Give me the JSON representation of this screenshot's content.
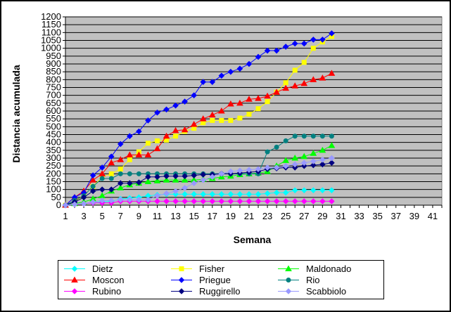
{
  "chart_data": {
    "type": "line",
    "title": "",
    "xlabel": "Semana",
    "ylabel": "Distancia acumulada",
    "xlim": [
      1,
      42
    ],
    "ylim": [
      0,
      1200
    ],
    "ytick_step": 50,
    "xticks": [
      "1",
      "3",
      "5",
      "7",
      "9",
      "11",
      "13",
      "15",
      "17",
      "19",
      "21",
      "23",
      "25",
      "27",
      "29",
      "31",
      "33",
      "35",
      "37",
      "39",
      "41"
    ],
    "plot_background": "#c0c0c0",
    "grid": true,
    "legend_position": "bottom",
    "series": [
      {
        "name": "Dietz",
        "color": "#00ffff",
        "marker": "diamond",
        "x": [
          1,
          2,
          3,
          4,
          5,
          6,
          7,
          8,
          9,
          10,
          11,
          12,
          13,
          14,
          15,
          16,
          17,
          18,
          19,
          20,
          21,
          22,
          23,
          24,
          25,
          26,
          27,
          28,
          29,
          30
        ],
        "values": [
          0,
          5,
          10,
          15,
          20,
          25,
          40,
          45,
          50,
          60,
          65,
          70,
          70,
          70,
          70,
          70,
          70,
          70,
          70,
          70,
          70,
          70,
          75,
          80,
          80,
          95,
          95,
          95,
          95,
          95
        ]
      },
      {
        "name": "Fisher",
        "color": "#ffff00",
        "marker": "square",
        "x": [
          1,
          2,
          3,
          4,
          5,
          6,
          7,
          8,
          9,
          10,
          11,
          12,
          13,
          14,
          15,
          16,
          17,
          18,
          19,
          20,
          21,
          22,
          23,
          24,
          25,
          26,
          27,
          28,
          29,
          30
        ],
        "values": [
          0,
          20,
          60,
          120,
          180,
          200,
          230,
          290,
          340,
          395,
          410,
          415,
          440,
          470,
          490,
          525,
          540,
          540,
          540,
          555,
          580,
          615,
          660,
          720,
          780,
          860,
          910,
          1000,
          1040,
          1075
        ]
      },
      {
        "name": "Maldonado",
        "color": "#00ff00",
        "marker": "triangle",
        "x": [
          1,
          2,
          3,
          4,
          5,
          6,
          7,
          8,
          9,
          10,
          11,
          12,
          13,
          14,
          15,
          16,
          17,
          18,
          19,
          20,
          21,
          22,
          23,
          24,
          25,
          26,
          27,
          28,
          29,
          30
        ],
        "values": [
          0,
          10,
          20,
          40,
          60,
          90,
          110,
          130,
          140,
          150,
          155,
          160,
          160,
          160,
          160,
          165,
          170,
          180,
          185,
          195,
          200,
          205,
          215,
          250,
          285,
          300,
          310,
          330,
          350,
          380
        ]
      },
      {
        "name": "Moscon",
        "color": "#ff0000",
        "marker": "triangle",
        "x": [
          1,
          2,
          3,
          4,
          5,
          6,
          7,
          8,
          9,
          10,
          11,
          12,
          13,
          14,
          15,
          16,
          17,
          18,
          19,
          20,
          21,
          22,
          23,
          24,
          25,
          26,
          27,
          28,
          29,
          30
        ],
        "values": [
          0,
          50,
          90,
          160,
          200,
          270,
          290,
          320,
          320,
          320,
          360,
          440,
          475,
          480,
          515,
          550,
          575,
          600,
          645,
          650,
          675,
          680,
          695,
          720,
          745,
          760,
          775,
          800,
          810,
          840
        ]
      },
      {
        "name": "Priegue",
        "color": "#0000ff",
        "marker": "diamond",
        "x": [
          1,
          2,
          3,
          4,
          5,
          6,
          7,
          8,
          9,
          10,
          11,
          12,
          13,
          14,
          15,
          16,
          17,
          18,
          19,
          20,
          21,
          22,
          23,
          24,
          25,
          26,
          27,
          28,
          29,
          30
        ],
        "values": [
          0,
          50,
          80,
          190,
          240,
          310,
          390,
          440,
          470,
          540,
          590,
          610,
          635,
          660,
          700,
          785,
          785,
          825,
          850,
          870,
          900,
          945,
          985,
          985,
          1010,
          1030,
          1030,
          1055,
          1055,
          1095
        ]
      },
      {
        "name": "Rio",
        "color": "#008080",
        "marker": "circle",
        "x": [
          1,
          2,
          3,
          4,
          5,
          6,
          7,
          8,
          9,
          10,
          11,
          12,
          13,
          14,
          15,
          16,
          17,
          18,
          19,
          20,
          21,
          22,
          23,
          24,
          25,
          26,
          27,
          28,
          29,
          30
        ],
        "values": [
          0,
          30,
          60,
          120,
          170,
          170,
          200,
          200,
          200,
          200,
          200,
          200,
          200,
          200,
          200,
          200,
          200,
          200,
          200,
          200,
          200,
          200,
          340,
          370,
          410,
          440,
          440,
          440,
          440,
          440
        ]
      },
      {
        "name": "Rubino",
        "color": "#ff00ff",
        "marker": "diamond",
        "x": [
          1,
          2,
          3,
          4,
          5,
          6,
          7,
          8,
          9,
          10,
          11,
          12,
          13,
          14,
          15,
          16,
          17,
          18,
          19,
          20,
          21,
          22,
          23,
          24,
          25,
          26,
          27,
          28,
          29,
          30
        ],
        "values": [
          0,
          5,
          10,
          15,
          15,
          15,
          25,
          25,
          25,
          25,
          25,
          25,
          25,
          25,
          25,
          25,
          25,
          25,
          25,
          25,
          25,
          25,
          25,
          25,
          25,
          25,
          25,
          25,
          25,
          25
        ]
      },
      {
        "name": "Ruggirello",
        "color": "#000080",
        "marker": "diamond",
        "x": [
          1,
          2,
          3,
          4,
          5,
          6,
          7,
          8,
          9,
          10,
          11,
          12,
          13,
          14,
          15,
          16,
          17,
          18,
          19,
          20,
          21,
          22,
          23,
          24,
          25,
          26,
          27,
          28,
          29,
          30
        ],
        "values": [
          0,
          20,
          50,
          90,
          100,
          100,
          140,
          140,
          145,
          180,
          180,
          185,
          185,
          185,
          190,
          195,
          195,
          200,
          200,
          205,
          210,
          215,
          230,
          235,
          240,
          240,
          250,
          255,
          260,
          270
        ]
      },
      {
        "name": "Scabbiolo",
        "color": "#9999ff",
        "marker": "diamond",
        "x": [
          1,
          2,
          3,
          4,
          5,
          6,
          7,
          8,
          9,
          10,
          11,
          12,
          13,
          14,
          15,
          16,
          17,
          18,
          19,
          20,
          21,
          22,
          23,
          24,
          25,
          26,
          27,
          28,
          29,
          30
        ],
        "values": [
          0,
          5,
          10,
          20,
          30,
          30,
          35,
          35,
          35,
          35,
          60,
          75,
          90,
          110,
          140,
          160,
          180,
          200,
          215,
          220,
          225,
          230,
          240,
          240,
          250,
          260,
          270,
          280,
          290,
          300
        ]
      }
    ]
  }
}
